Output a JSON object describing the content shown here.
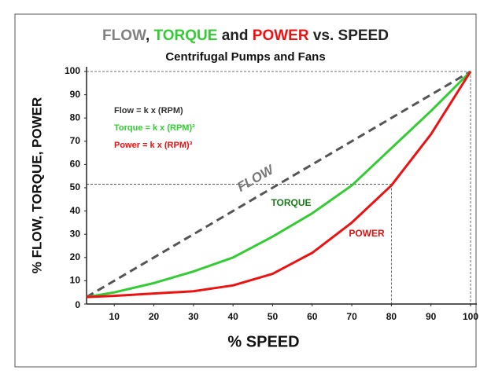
{
  "chart_data": {
    "type": "line",
    "title_parts": [
      {
        "text": "FLOW",
        "color": "#808080"
      },
      {
        "text": ", ",
        "color": "#222222"
      },
      {
        "text": "TORQUE",
        "color": "#33cc33"
      },
      {
        "text": " and ",
        "color": "#222222"
      },
      {
        "text": "POWER",
        "color": "#ee1111"
      },
      {
        "text": " vs. SPEED",
        "color": "#222222"
      }
    ],
    "subtitle": "Centrifugal Pumps and Fans",
    "x_label": "% SPEED",
    "y_label": "% FLOW, TORQUE, POWER",
    "x": [
      3,
      10,
      20,
      30,
      40,
      50,
      60,
      70,
      80,
      90,
      100
    ],
    "series": [
      {
        "name": "FLOW",
        "color": "#555555",
        "dashed": true,
        "values": [
          3,
          10,
          20,
          30,
          40,
          50,
          60,
          70,
          80,
          90,
          100
        ]
      },
      {
        "name": "TORQUE",
        "color": "#33cc33",
        "dashed": false,
        "values": [
          3,
          5,
          9,
          14,
          20,
          29,
          39,
          51,
          67,
          83,
          100
        ]
      },
      {
        "name": "POWER",
        "color": "#ee1111",
        "dashed": false,
        "values": [
          3,
          3.5,
          4.5,
          5.5,
          8,
          13,
          22,
          35,
          51,
          73,
          100
        ]
      }
    ],
    "annotations": [
      {
        "text": "Flow = k x (RPM)",
        "color": "#333333"
      },
      {
        "text": "Torque = k x (RPM)²",
        "color": "#33cc33"
      },
      {
        "text": "Power = k x (RPM)³",
        "color": "#ee1111"
      },
      {
        "text": "FLOW",
        "color": "#777777"
      },
      {
        "text": "TORQUE",
        "color": "#1a7a1a"
      },
      {
        "text": "POWER",
        "color": "#dd1111"
      }
    ],
    "guides": [
      {
        "x": 80,
        "y": 51.5
      },
      {
        "x": 100,
        "y": 100
      }
    ],
    "xlim": [
      3,
      100
    ],
    "ylim": [
      0,
      100
    ],
    "xticks": [
      10,
      20,
      30,
      40,
      50,
      60,
      70,
      80,
      90,
      100
    ],
    "yticks": [
      0,
      10,
      20,
      30,
      40,
      50,
      60,
      70,
      80,
      90,
      100
    ],
    "grid": false
  }
}
